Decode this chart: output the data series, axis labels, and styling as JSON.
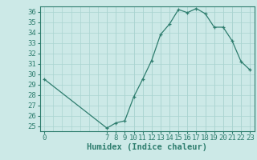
{
  "x": [
    0,
    7,
    8,
    9,
    10,
    11,
    12,
    13,
    14,
    15,
    16,
    17,
    18,
    19,
    20,
    21,
    22,
    23
  ],
  "y": [
    29.5,
    24.8,
    25.3,
    25.5,
    27.8,
    29.5,
    31.3,
    33.8,
    34.8,
    36.2,
    35.9,
    36.3,
    35.8,
    34.5,
    34.5,
    33.2,
    31.2,
    30.4
  ],
  "line_color": "#2e7d6e",
  "marker_color": "#2e7d6e",
  "bg_color": "#cce9e7",
  "grid_color": "#aad4d1",
  "xlabel": "Humidex (Indice chaleur)",
  "ylim": [
    24.5,
    36.5
  ],
  "yticks": [
    25,
    26,
    27,
    28,
    29,
    30,
    31,
    32,
    33,
    34,
    35,
    36
  ],
  "shown_x": [
    0,
    7,
    8,
    9,
    10,
    11,
    12,
    13,
    14,
    15,
    16,
    17,
    18,
    19,
    20,
    21,
    22,
    23
  ],
  "label_fontsize": 7.5,
  "tick_fontsize": 6.5
}
